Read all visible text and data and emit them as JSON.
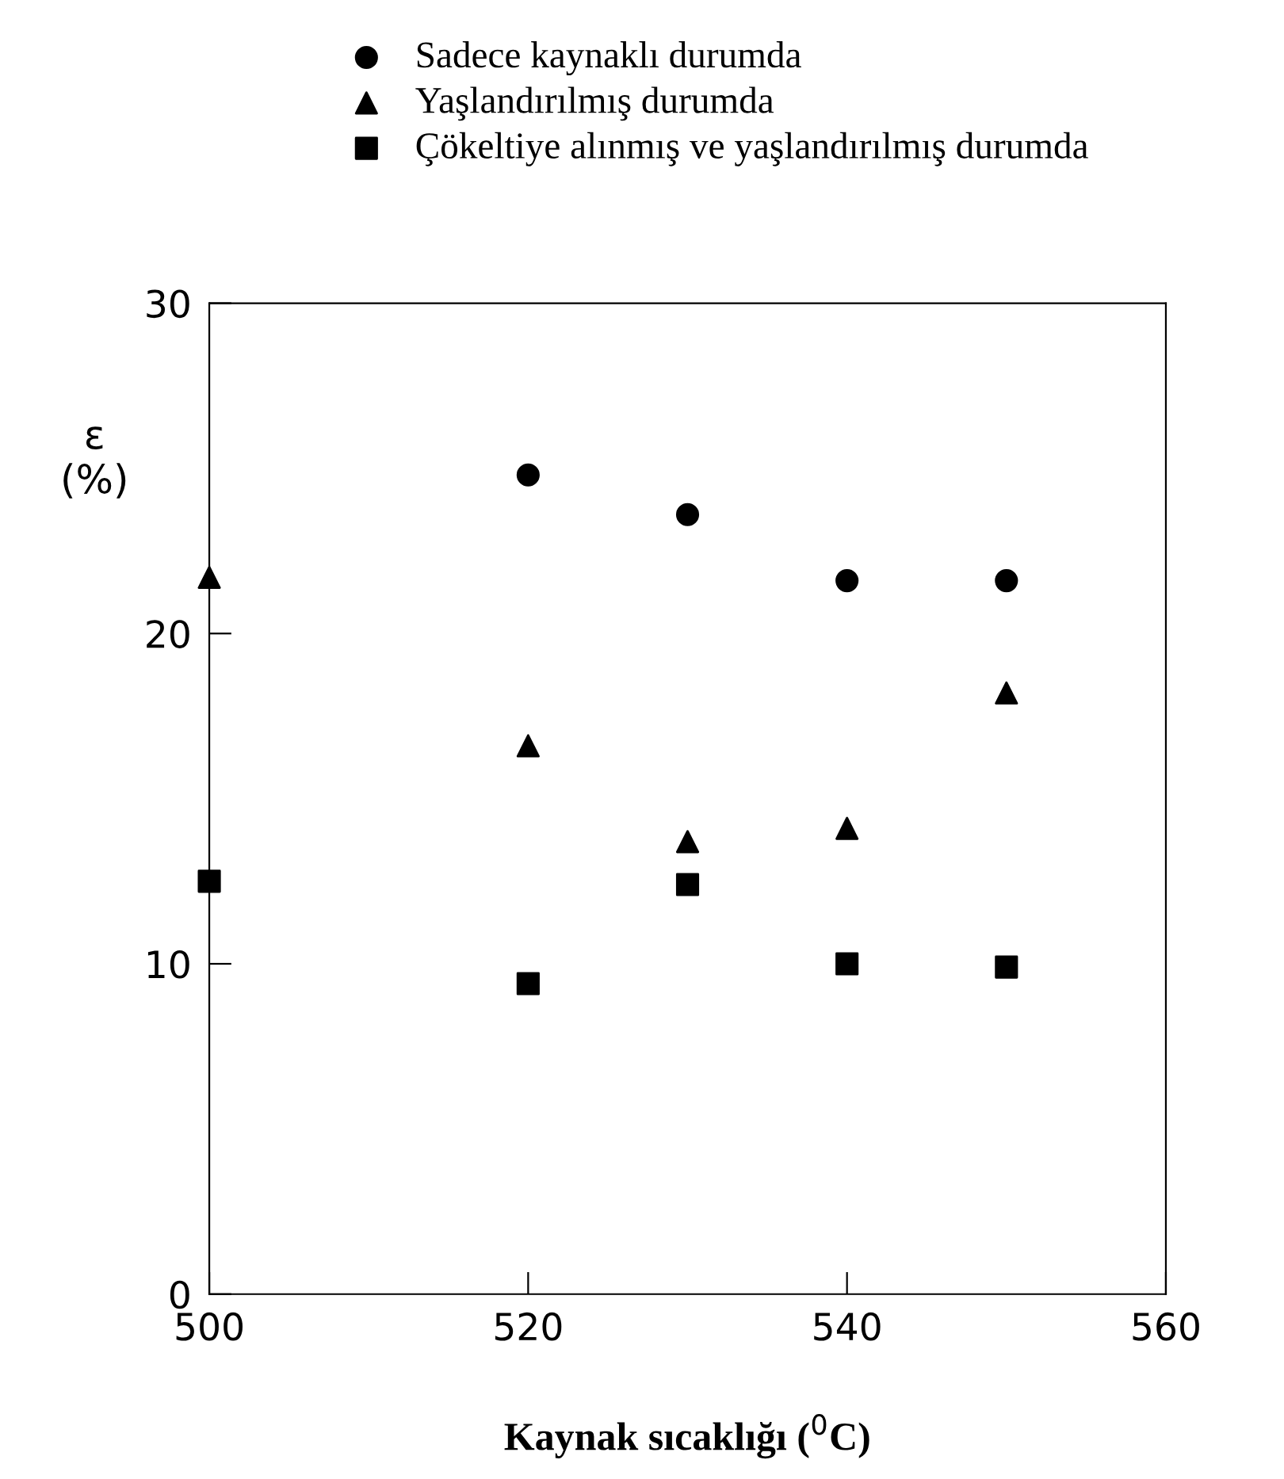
{
  "chart_data": {
    "type": "scatter",
    "xlabel": "Kaynak sıcaklığı ($^{0}$C)",
    "ylabel": "ε\n(%)",
    "xlim": [
      500,
      560
    ],
    "xticks": [
      500,
      520,
      540,
      560
    ],
    "ylim": [
      0,
      30
    ],
    "yticks": [
      0,
      10,
      20,
      30
    ],
    "grid": false,
    "legend": "top",
    "series": [
      {
        "name": "Sadece kaynaklı durumda",
        "color": "#000000",
        "marker": "circle",
        "x": [
          520,
          530,
          540,
          550
        ],
        "values": [
          24.8,
          23.6,
          21.6,
          21.6
        ]
      },
      {
        "name": "Yaşlandırılmış durumda",
        "color": "#000000",
        "marker": "triangle",
        "x": [
          500,
          520,
          530,
          540,
          550
        ],
        "values": [
          21.7,
          16.6,
          13.7,
          14.1,
          18.2
        ]
      },
      {
        "name": "Çökeltiye alınmış ve yaşlandırılmış durumda",
        "color": "#000000",
        "marker": "square",
        "x": [
          500,
          520,
          530,
          540,
          550
        ],
        "values": [
          12.5,
          9.4,
          12.4,
          10.0,
          9.9
        ]
      }
    ]
  }
}
